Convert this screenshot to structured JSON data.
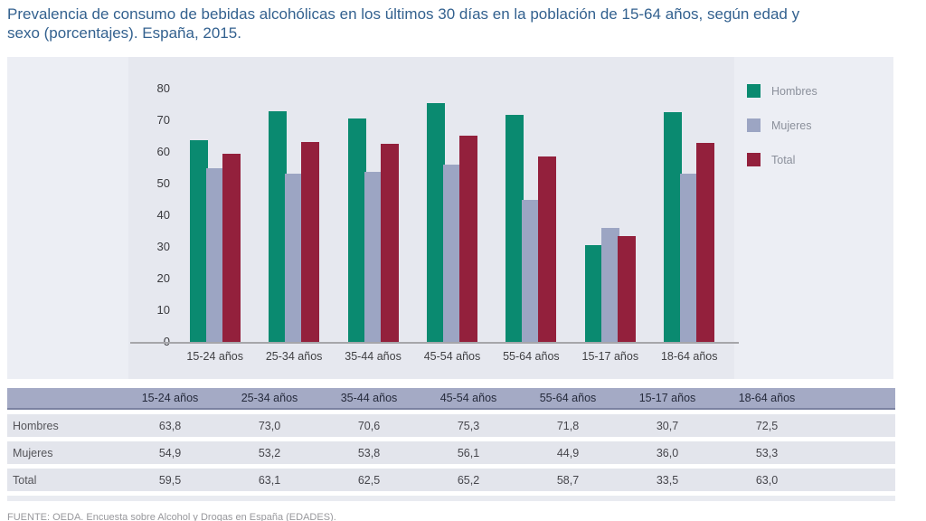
{
  "title": "Prevalencia de consumo de bebidas alcohólicas en los últimos 30 días en la población de 15-64 años, según edad y sexo (porcentajes). España, 2015.",
  "source": "FUENTE: OEDA. Encuesta sobre Alcohol y Drogas en España (EDADES).",
  "colors": {
    "hombres": "#0a8a70",
    "mujeres": "#9ca5c3",
    "total": "#93203c",
    "panel_bg": "#eceef4",
    "plot_bg": "#e6e8ef",
    "title_text": "#33618f",
    "table_header_bg": "#a4aac5",
    "table_row_bg": "#e3e5ec"
  },
  "chart_data": {
    "type": "bar",
    "categories": [
      "15-24 años",
      "25-34 años",
      "35-44 años",
      "45-54 años",
      "55-64 años",
      "15-17 años",
      "18-64 años"
    ],
    "series": [
      {
        "name": "Hombres",
        "color": "#0a8a70",
        "values": [
          63.8,
          73.0,
          70.6,
          75.3,
          71.8,
          30.7,
          72.5
        ]
      },
      {
        "name": "Mujeres",
        "color": "#9ca5c3",
        "values": [
          54.9,
          53.2,
          53.8,
          56.1,
          44.9,
          36.0,
          53.3
        ]
      },
      {
        "name": "Total",
        "color": "#93203c",
        "values": [
          59.5,
          63.1,
          62.5,
          65.2,
          58.7,
          33.5,
          63.0
        ]
      }
    ],
    "title": "",
    "xlabel": "",
    "ylabel": "",
    "ylim": [
      0,
      80
    ],
    "yticks": [
      0,
      10,
      20,
      30,
      40,
      50,
      60,
      70,
      80
    ],
    "grid": false,
    "legend_position": "right"
  },
  "table": {
    "columns": [
      "15-24 años",
      "25-34 años",
      "35-44 años",
      "45-54 años",
      "55-64 años",
      "15-17 años",
      "18-64 años"
    ],
    "rows": [
      {
        "label": "Hombres",
        "values": [
          "63,8",
          "73,0",
          "70,6",
          "75,3",
          "71,8",
          "30,7",
          "72,5"
        ]
      },
      {
        "label": "Mujeres",
        "values": [
          "54,9",
          "53,2",
          "53,8",
          "56,1",
          "44,9",
          "36,0",
          "53,3"
        ]
      },
      {
        "label": "Total",
        "values": [
          "59,5",
          "63,1",
          "62,5",
          "65,2",
          "58,7",
          "33,5",
          "63,0"
        ]
      }
    ]
  }
}
